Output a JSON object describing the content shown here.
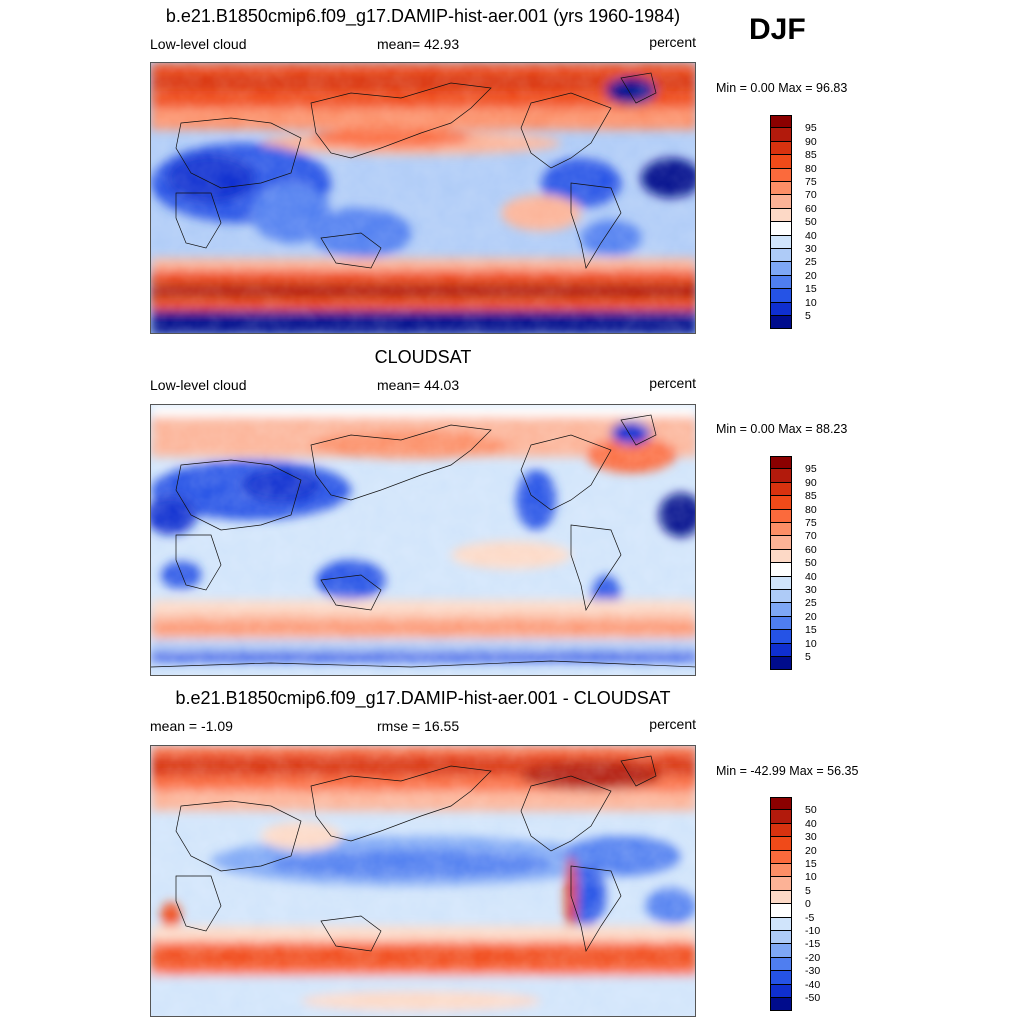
{
  "season": "DJF",
  "panels": [
    {
      "title": "b.e21.B1850cmip6.f09_g17.DAMIP-hist-aer.001 (yrs 1960-1984)",
      "left_label": "Low-level cloud",
      "center_label": "mean=  42.93",
      "units": "percent",
      "minmax": "Min =   0.00 Max =  96.83",
      "colorbar": {
        "levels": [
          "95",
          "90",
          "85",
          "80",
          "75",
          "70",
          "60",
          "50",
          "40",
          "30",
          "25",
          "20",
          "15",
          "10",
          "5"
        ],
        "colors": [
          "#8b0000",
          "#b21a0c",
          "#d8320f",
          "#f04a19",
          "#fb6a3c",
          "#fc8e66",
          "#fcb296",
          "#fdd9c6",
          "#ffffff",
          "#d0e4fb",
          "#aecbf7",
          "#7ea7f5",
          "#4f7ef0",
          "#2553e6",
          "#0f2fd0",
          "#000c8c"
        ]
      },
      "map_description": "Global low-level cloud fraction, model"
    },
    {
      "title": "CLOUDSAT",
      "left_label": "Low-level cloud",
      "center_label": "mean=  44.03",
      "units": "percent",
      "minmax": "Min =   0.00 Max =  88.23",
      "colorbar": {
        "levels": [
          "95",
          "90",
          "85",
          "80",
          "75",
          "70",
          "60",
          "50",
          "40",
          "30",
          "25",
          "20",
          "15",
          "10",
          "5"
        ],
        "colors": [
          "#8b0000",
          "#b21a0c",
          "#d8320f",
          "#f04a19",
          "#fb6a3c",
          "#fc8e66",
          "#fcb296",
          "#fdd9c6",
          "#ffffff",
          "#d0e4fb",
          "#aecbf7",
          "#7ea7f5",
          "#4f7ef0",
          "#2553e6",
          "#0f2fd0",
          "#000c8c"
        ]
      },
      "map_description": "Global low-level cloud fraction, observations"
    },
    {
      "title": "b.e21.B1850cmip6.f09_g17.DAMIP-hist-aer.001 - CLOUDSAT",
      "left_label": "mean =  -1.09",
      "center_label": "rmse =  16.55",
      "units": "percent",
      "minmax": "Min = -42.99 Max =  56.35",
      "colorbar": {
        "levels": [
          "50",
          "40",
          "30",
          "20",
          "15",
          "10",
          "5",
          "0",
          "-5",
          "-10",
          "-15",
          "-20",
          "-30",
          "-40",
          "-50"
        ],
        "colors": [
          "#8b0000",
          "#b21a0c",
          "#d8320f",
          "#f04a19",
          "#fb6a3c",
          "#fc8e66",
          "#fcb296",
          "#fdd9c6",
          "#ffffff",
          "#d0e4fb",
          "#aecbf7",
          "#7ea7f5",
          "#4f7ef0",
          "#2553e6",
          "#0f2fd0",
          "#000c8c"
        ]
      },
      "map_description": "Model minus observations difference"
    }
  ]
}
